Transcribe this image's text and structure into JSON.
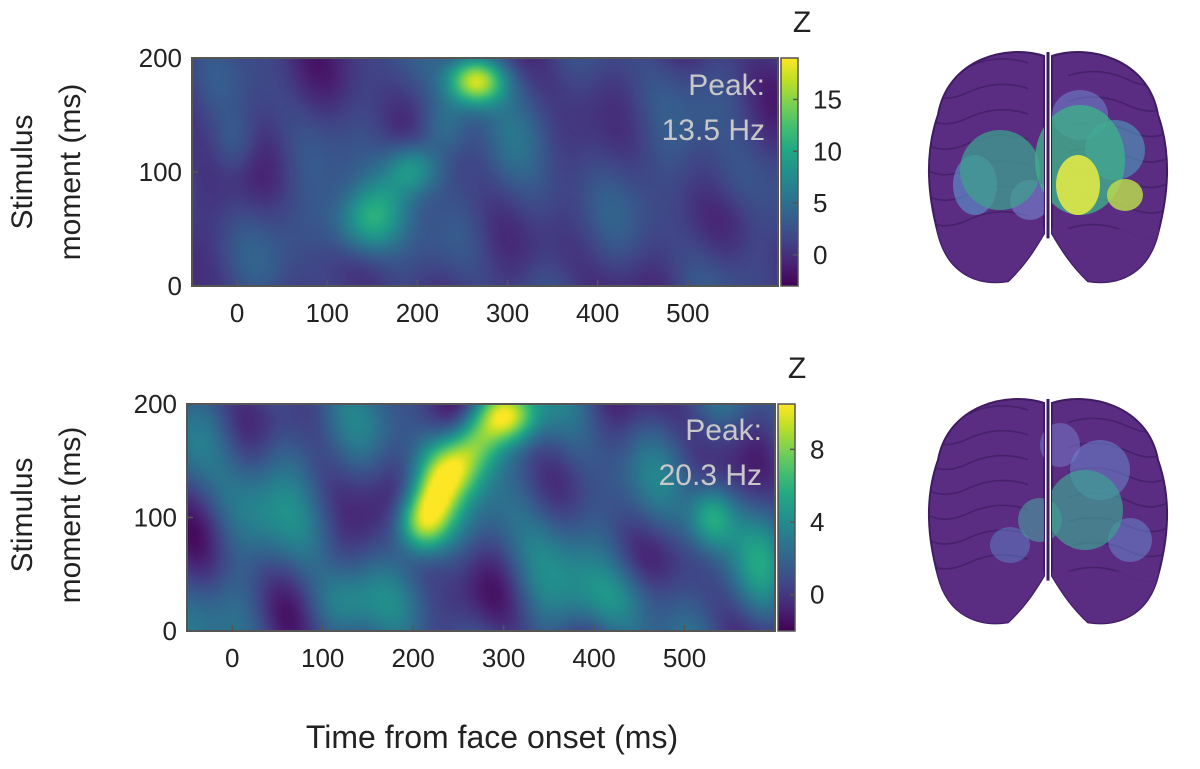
{
  "figure": {
    "xlabel": "Time from face onset (ms)"
  },
  "chart_data": [
    {
      "type": "heatmap",
      "ylabel_line1": "Stimulus",
      "ylabel_line2": "moment (ms)",
      "xlim": [
        -50,
        600
      ],
      "ylim": [
        0,
        200
      ],
      "xticks": [
        0,
        100,
        200,
        300,
        400,
        500
      ],
      "yticks": [
        0,
        100,
        200
      ],
      "colorbar": {
        "label": "Z",
        "range": [
          -3,
          19
        ],
        "ticks": [
          0,
          5,
          10,
          15
        ]
      },
      "annotation": {
        "line1": "Peak:",
        "line2": "13.5 Hz"
      },
      "baseline": 1.0,
      "blobs": [
        {
          "x": 265,
          "y": 180,
          "sx": 22,
          "sy": 15,
          "z": 18
        },
        {
          "x": 195,
          "y": 103,
          "sx": 22,
          "sy": 17,
          "z": 10
        },
        {
          "x": 140,
          "y": 52,
          "sx": 26,
          "sy": 22,
          "z": 9
        },
        {
          "x": 160,
          "y": 70,
          "sx": 25,
          "sy": 20,
          "z": 5
        },
        {
          "x": 230,
          "y": 140,
          "sx": 20,
          "sy": 18,
          "z": 5
        },
        {
          "x": 300,
          "y": 120,
          "sx": 28,
          "sy": 40,
          "z": 3
        },
        {
          "x": 0,
          "y": 125,
          "sx": 18,
          "sy": 20,
          "z": 4
        },
        {
          "x": 65,
          "y": 50,
          "sx": 30,
          "sy": 30,
          "z": 2.5
        },
        {
          "x": 470,
          "y": 110,
          "sx": 40,
          "sy": 50,
          "z": 2
        },
        {
          "x": 540,
          "y": 90,
          "sx": 25,
          "sy": 22,
          "z": 3
        },
        {
          "x": 340,
          "y": 70,
          "sx": 28,
          "sy": 28,
          "z": 2.5
        },
        {
          "x": 420,
          "y": 150,
          "sx": 30,
          "sy": 30,
          "z": 2
        }
      ]
    },
    {
      "type": "heatmap",
      "ylabel_line1": "Stimulus",
      "ylabel_line2": "moment (ms)",
      "xlim": [
        -50,
        600
      ],
      "ylim": [
        0,
        200
      ],
      "xticks": [
        0,
        100,
        200,
        300,
        400,
        500
      ],
      "yticks": [
        0,
        100,
        200
      ],
      "colorbar": {
        "label": "Z",
        "range": [
          -2,
          10.5
        ],
        "ticks": [
          0,
          4,
          8
        ]
      },
      "annotation": {
        "line1": "Peak:",
        "line2": "20.3 Hz"
      },
      "baseline": 1.0,
      "blobs": [
        {
          "x": 210,
          "y": 95,
          "sx": 20,
          "sy": 18,
          "z": 9.5
        },
        {
          "x": 245,
          "y": 145,
          "sx": 24,
          "sy": 18,
          "z": 8.5
        },
        {
          "x": 300,
          "y": 190,
          "sx": 24,
          "sy": 16,
          "z": 9.5
        },
        {
          "x": 225,
          "y": 120,
          "sx": 18,
          "sy": 16,
          "z": 6
        },
        {
          "x": 270,
          "y": 168,
          "sx": 20,
          "sy": 16,
          "z": 6
        },
        {
          "x": 530,
          "y": 100,
          "sx": 18,
          "sy": 20,
          "z": 6
        },
        {
          "x": 120,
          "y": 25,
          "sx": 26,
          "sy": 22,
          "z": 4
        },
        {
          "x": 440,
          "y": 30,
          "sx": 40,
          "sy": 22,
          "z": 3.5
        },
        {
          "x": 350,
          "y": 90,
          "sx": 30,
          "sy": 45,
          "z": 3
        },
        {
          "x": 20,
          "y": 110,
          "sx": 30,
          "sy": 30,
          "z": 3
        },
        {
          "x": 590,
          "y": 60,
          "sx": 20,
          "sy": 40,
          "z": 3
        },
        {
          "x": 60,
          "y": 160,
          "sx": 30,
          "sy": 25,
          "z": 2.5
        }
      ]
    }
  ],
  "brains": [
    {
      "name": "brain-top"
    },
    {
      "name": "brain-bottom"
    }
  ],
  "colors": {
    "brain_base": "#5a2d82",
    "brain_dark": "#3f1c62",
    "annotation_text": "#c8c8c8",
    "axis": "#222222"
  }
}
